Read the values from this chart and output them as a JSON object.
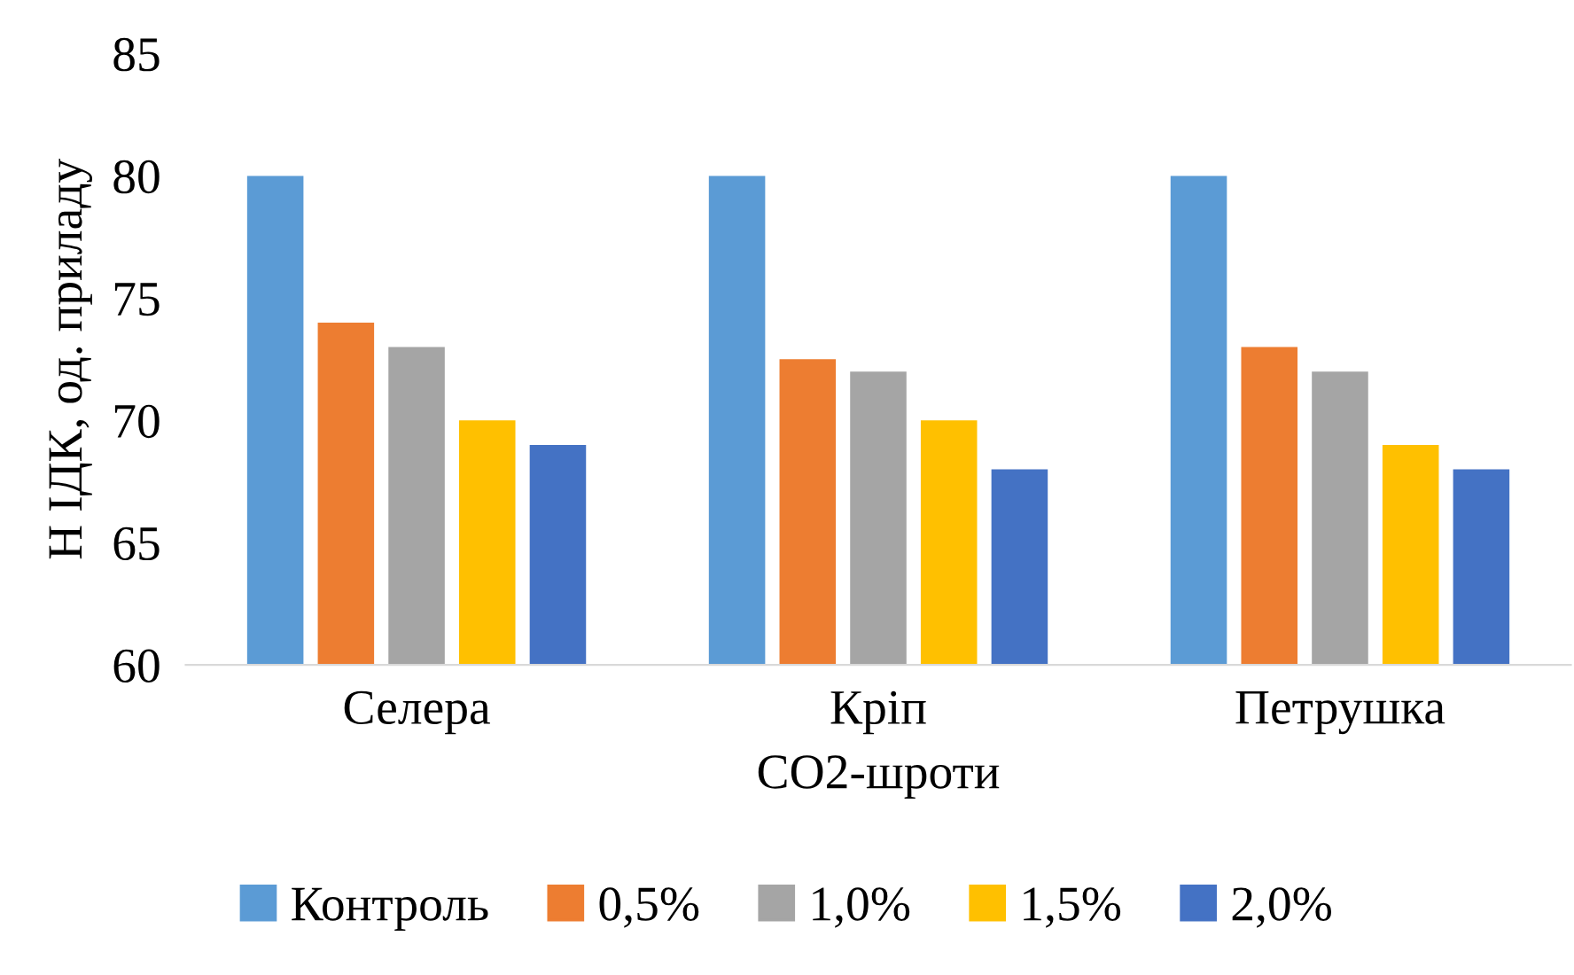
{
  "chart_data": {
    "type": "bar",
    "xlabel": "СО2-шроти",
    "ylabel": "Н ІДК, од. приладу",
    "categories": [
      "Селера",
      "Кріп",
      "Петрушка"
    ],
    "series": [
      {
        "name": "Контроль",
        "color": "#5b9bd5",
        "values": [
          80,
          80,
          80
        ]
      },
      {
        "name": "0,5%",
        "color": "#ed7d31",
        "values": [
          74,
          72.5,
          73
        ]
      },
      {
        "name": "1,0%",
        "color": "#a5a5a5",
        "values": [
          73,
          72,
          72
        ]
      },
      {
        "name": "1,5%",
        "color": "#ffc000",
        "values": [
          70,
          70,
          69
        ]
      },
      {
        "name": "2,0%",
        "color": "#4472c4",
        "values": [
          69,
          68,
          68
        ]
      }
    ],
    "ylim": [
      60,
      85
    ],
    "yticks": [
      60,
      65,
      70,
      75,
      80,
      85
    ],
    "grid": false,
    "legend": "bottom"
  }
}
